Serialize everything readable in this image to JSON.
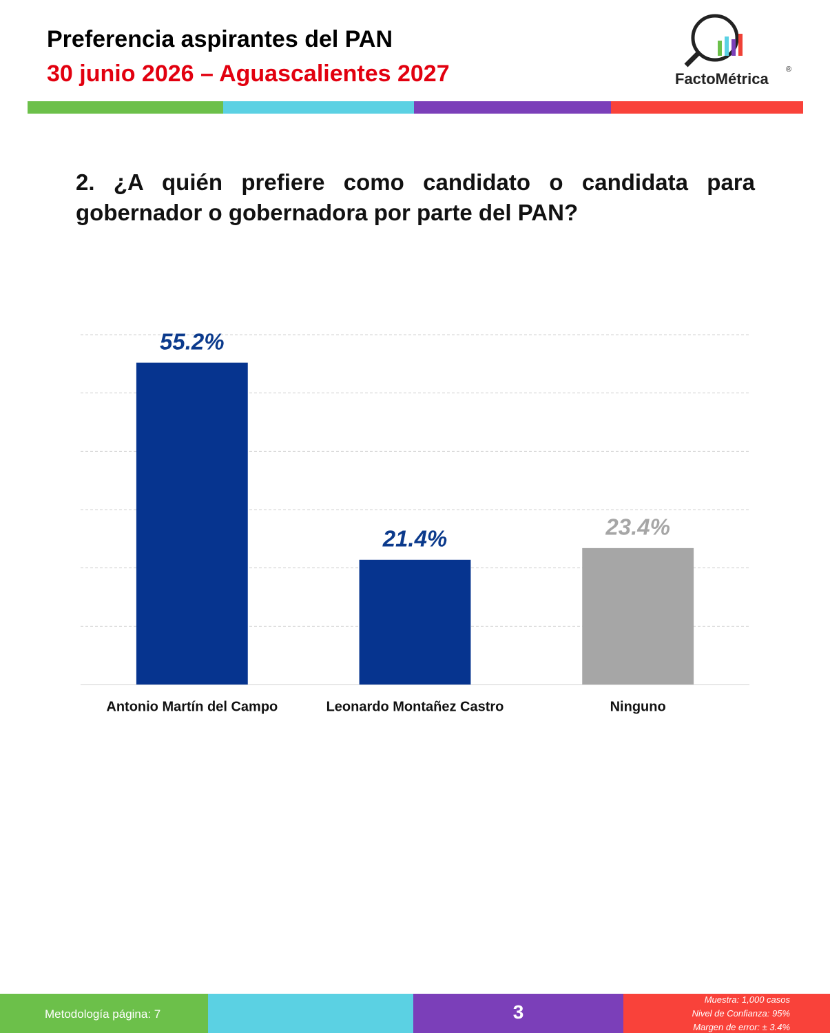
{
  "header": {
    "title": "Preferencia aspirantes del PAN",
    "subtitle": "30 junio 2026 – Aguascalientes 2027",
    "logo_text": "FactoMétrica",
    "logo_mark": "®"
  },
  "question": "2. ¿A quién prefiere como candidato o candidata para gobernador o gobernadora por parte del PAN?",
  "chart_data": {
    "type": "bar",
    "categories": [
      "Antonio Martín del Campo",
      "Leonardo Montañez Castro",
      "Ninguno"
    ],
    "values": [
      55.2,
      21.4,
      23.4
    ],
    "value_labels": [
      "55.2%",
      "21.4%",
      "23.4%"
    ],
    "colors": [
      "#06348f",
      "#06348f",
      "#a6a6a6"
    ],
    "label_colors": [
      "#0b3a8c",
      "#0b3a8c",
      "#a6a6a6"
    ],
    "ylim": [
      0,
      60
    ],
    "yticks": [
      0,
      10,
      20,
      30,
      40,
      50,
      60
    ],
    "grid": true
  },
  "footer": {
    "methodology": "Metodología página: 7",
    "page": "3",
    "notes": [
      "Muestra:  1,000 casos",
      "Nivel de Confianza: 95%",
      "Margen de error: ± 3.4%"
    ]
  }
}
